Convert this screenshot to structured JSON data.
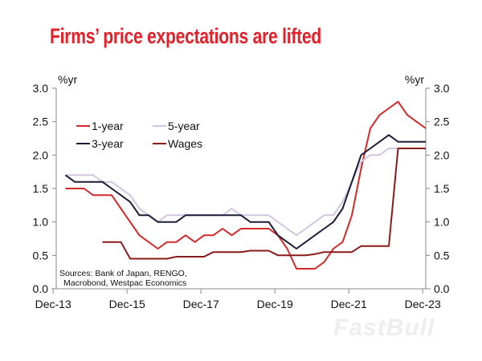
{
  "chart_data": {
    "type": "line",
    "title": "Firms’ price expectations are lifted",
    "ylabel_left": "%yr",
    "ylabel_right": "%yr",
    "ylim": [
      0,
      3
    ],
    "yticks": [
      "0.0",
      "0.5",
      "1.0",
      "1.5",
      "2.0",
      "2.5",
      "3.0"
    ],
    "xticks": [
      "Dec-13",
      "Dec-15",
      "Dec-17",
      "Dec-19",
      "Dec-21",
      "Dec-23"
    ],
    "xlim": [
      "2013-12",
      "2023-12"
    ],
    "grid": false,
    "legend_position": "top-left",
    "source": [
      "Sources: Bank of Japan, RENGO,",
      "Macrobond, Westpac Economics"
    ],
    "x": [
      "2014-03",
      "2014-06",
      "2014-09",
      "2014-12",
      "2015-03",
      "2015-06",
      "2015-09",
      "2015-12",
      "2016-03",
      "2016-06",
      "2016-09",
      "2016-12",
      "2017-03",
      "2017-06",
      "2017-09",
      "2017-12",
      "2018-03",
      "2018-06",
      "2018-09",
      "2018-12",
      "2019-03",
      "2019-06",
      "2019-09",
      "2019-12",
      "2020-03",
      "2020-06",
      "2020-09",
      "2020-12",
      "2021-03",
      "2021-06",
      "2021-09",
      "2021-12",
      "2022-03",
      "2022-06",
      "2022-09",
      "2022-12",
      "2023-03",
      "2023-06",
      "2023-09",
      "2023-12"
    ],
    "series": [
      {
        "name": "1-year",
        "color": "#d42a2a",
        "values": [
          1.5,
          1.5,
          1.5,
          1.4,
          1.4,
          1.4,
          1.2,
          1.0,
          0.8,
          0.7,
          0.6,
          0.7,
          0.7,
          0.8,
          0.7,
          0.8,
          0.8,
          0.9,
          0.8,
          0.9,
          0.9,
          0.9,
          0.9,
          0.8,
          0.6,
          0.3,
          0.3,
          0.3,
          0.4,
          0.6,
          0.7,
          1.1,
          1.8,
          2.4,
          2.6,
          2.7,
          2.8,
          2.6,
          2.5,
          2.4
        ]
      },
      {
        "name": "5-year",
        "color": "#d4c4e0",
        "values": [
          1.7,
          1.7,
          1.7,
          1.7,
          1.6,
          1.6,
          1.5,
          1.4,
          1.2,
          1.1,
          1.0,
          1.1,
          1.1,
          1.1,
          1.1,
          1.1,
          1.1,
          1.1,
          1.2,
          1.1,
          1.1,
          1.1,
          1.1,
          1.0,
          0.9,
          0.8,
          0.9,
          1.0,
          1.1,
          1.1,
          1.3,
          1.6,
          1.9,
          2.0,
          2.0,
          2.1,
          2.1,
          2.1,
          2.1,
          2.1
        ]
      },
      {
        "name": "3-year",
        "color": "#1c1c3a",
        "values": [
          1.7,
          1.6,
          1.6,
          1.6,
          1.6,
          1.5,
          1.4,
          1.3,
          1.1,
          1.1,
          1.0,
          1.0,
          1.0,
          1.1,
          1.1,
          1.1,
          1.1,
          1.1,
          1.1,
          1.1,
          1.0,
          1.0,
          1.0,
          0.8,
          0.7,
          0.6,
          0.7,
          0.8,
          0.9,
          1.0,
          1.2,
          1.6,
          2.0,
          2.1,
          2.2,
          2.3,
          2.2,
          2.2,
          2.2,
          2.2
        ]
      },
      {
        "name": "Wages",
        "color": "#8b1a1a",
        "values": [
          null,
          null,
          null,
          null,
          0.7,
          0.7,
          0.7,
          0.45,
          0.45,
          0.45,
          0.45,
          0.45,
          0.48,
          0.48,
          0.48,
          0.48,
          0.55,
          0.55,
          0.55,
          0.55,
          0.57,
          0.57,
          0.57,
          0.5,
          0.5,
          0.5,
          0.5,
          0.52,
          0.55,
          0.55,
          0.55,
          0.55,
          0.64,
          0.64,
          0.64,
          0.64,
          2.1,
          2.1,
          2.1,
          2.1
        ]
      }
    ]
  },
  "watermark": "FastBull"
}
